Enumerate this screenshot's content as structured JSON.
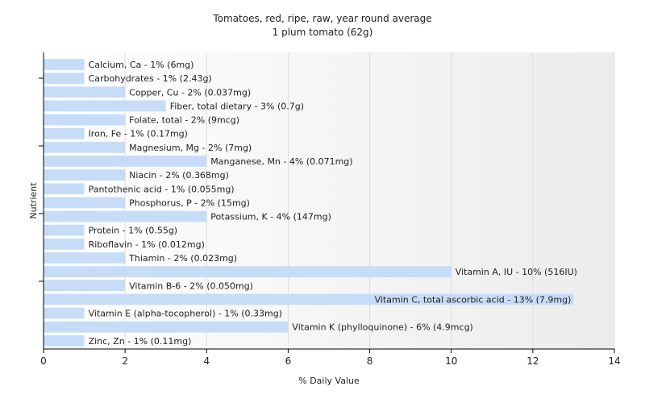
{
  "chart_data": {
    "type": "bar",
    "orientation": "horizontal",
    "title": "Tomatoes, red, ripe, raw, year round average",
    "subtitle": "1 plum tomato (62g)",
    "xlabel": "% Daily Value",
    "ylabel": "Nutrient",
    "xlim": [
      0,
      14
    ],
    "xticks": [
      0,
      2,
      4,
      6,
      8,
      10,
      12,
      14
    ],
    "grid": true,
    "bar_color": "#c6dcf7",
    "categories": [
      "Calcium, Ca",
      "Carbohydrates",
      "Copper, Cu",
      "Fiber, total dietary",
      "Folate, total",
      "Iron, Fe",
      "Magnesium, Mg",
      "Manganese, Mn",
      "Niacin",
      "Pantothenic acid",
      "Phosphorus, P",
      "Potassium, K",
      "Protein",
      "Riboflavin",
      "Thiamin",
      "Vitamin A, IU",
      "Vitamin B-6",
      "Vitamin C, total ascorbic acid",
      "Vitamin E (alpha-tocopherol)",
      "Vitamin K (phylloquinone)",
      "Zinc, Zn"
    ],
    "values": [
      1,
      1,
      2,
      3,
      2,
      1,
      2,
      4,
      2,
      1,
      2,
      4,
      1,
      1,
      2,
      10,
      2,
      13,
      1,
      6,
      1
    ],
    "labels": [
      "Calcium, Ca - 1% (6mg)",
      "Carbohydrates - 1% (2.43g)",
      "Copper, Cu - 2% (0.037mg)",
      "Fiber, total dietary - 3% (0.7g)",
      "Folate, total - 2% (9mcg)",
      "Iron, Fe - 1% (0.17mg)",
      "Magnesium, Mg - 2% (7mg)",
      "Manganese, Mn - 4% (0.071mg)",
      "Niacin - 2% (0.368mg)",
      "Pantothenic acid - 1% (0.055mg)",
      "Phosphorus, P - 2% (15mg)",
      "Potassium, K - 4% (147mg)",
      "Protein - 1% (0.55g)",
      "Riboflavin - 1% (0.012mg)",
      "Thiamin - 2% (0.023mg)",
      "Vitamin A, IU - 10% (516IU)",
      "Vitamin B-6 - 2% (0.050mg)",
      "Vitamin C, total ascorbic acid - 13% (7.9mg)",
      "Vitamin E (alpha-tocopherol) - 1% (0.33mg)",
      "Vitamin K (phylloquinone) - 6% (4.9mcg)",
      "Zinc, Zn - 1% (0.11mg)"
    ]
  }
}
